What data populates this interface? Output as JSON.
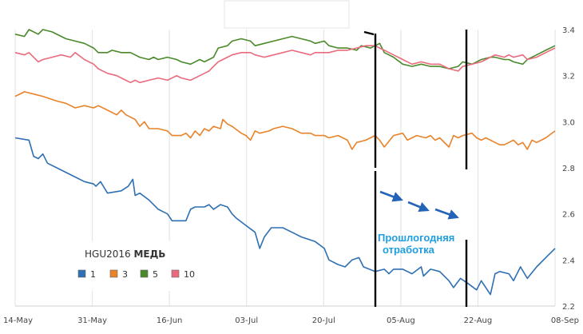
{
  "chart_data": {
    "type": "line",
    "x_labels": [
      "14-May",
      "31-May",
      "16-Jun",
      "03-Jul",
      "20-Jul",
      "05-Aug",
      "22-Aug",
      "08-Sep"
    ],
    "y_ticks": [
      "3.4",
      "3.2",
      "3.0",
      "2.8",
      "2.6",
      "2.4",
      "2.2"
    ],
    "ylim": [
      2.2,
      3.4
    ],
    "x_days": 117,
    "grid": {
      "vertical": true,
      "horizontal": false
    },
    "legend": {
      "position": "bottom-left",
      "title_main": "HGU2016",
      "title_bold": "МЕДЬ",
      "items": [
        "1",
        "3",
        "5",
        "10"
      ]
    },
    "annotation": {
      "line1": "Прошлогодняя",
      "line2": "отработка"
    },
    "series": [
      {
        "name": "1",
        "color": "#2f6fb3",
        "values": [
          [
            0,
            2.93
          ],
          [
            3,
            2.92
          ],
          [
            4,
            2.85
          ],
          [
            5,
            2.84
          ],
          [
            6,
            2.86
          ],
          [
            7,
            2.82
          ],
          [
            10,
            2.79
          ],
          [
            13,
            2.76
          ],
          [
            15,
            2.74
          ],
          [
            17,
            2.73
          ],
          [
            17.5,
            2.72
          ],
          [
            18.5,
            2.74
          ],
          [
            20,
            2.69
          ],
          [
            23,
            2.7
          ],
          [
            24.5,
            2.72
          ],
          [
            25.5,
            2.75
          ],
          [
            26,
            2.68
          ],
          [
            27,
            2.69
          ],
          [
            29,
            2.66
          ],
          [
            31,
            2.62
          ],
          [
            32,
            2.61
          ],
          [
            33,
            2.6
          ],
          [
            34,
            2.57
          ],
          [
            37,
            2.57
          ],
          [
            38,
            2.62
          ],
          [
            39,
            2.63
          ],
          [
            41,
            2.63
          ],
          [
            42,
            2.64
          ],
          [
            43,
            2.62
          ],
          [
            44.5,
            2.64
          ],
          [
            46,
            2.63
          ],
          [
            47,
            2.6
          ],
          [
            48,
            2.58
          ],
          [
            50,
            2.55
          ],
          [
            52,
            2.52
          ],
          [
            53,
            2.45
          ],
          [
            54,
            2.5
          ],
          [
            55.5,
            2.54
          ],
          [
            58,
            2.54
          ],
          [
            60,
            2.52
          ],
          [
            62,
            2.5
          ],
          [
            65,
            2.48
          ],
          [
            67,
            2.45
          ],
          [
            68,
            2.4
          ],
          [
            70,
            2.38
          ],
          [
            71.5,
            2.37
          ],
          [
            73,
            2.4
          ],
          [
            74.5,
            2.41
          ],
          [
            75.5,
            2.37
          ],
          [
            78,
            2.35
          ],
          [
            80,
            2.36
          ],
          [
            81,
            2.34
          ],
          [
            82,
            2.36
          ],
          [
            84,
            2.36
          ],
          [
            86,
            2.34
          ],
          [
            88,
            2.37
          ],
          [
            88.5,
            2.33
          ],
          [
            90,
            2.36
          ],
          [
            92,
            2.35
          ],
          [
            94,
            2.31
          ],
          [
            95,
            2.28
          ],
          [
            96.5,
            2.32
          ],
          [
            98,
            2.3
          ],
          [
            100,
            2.27
          ],
          [
            101,
            2.31
          ],
          [
            102,
            2.28
          ],
          [
            103,
            2.25
          ],
          [
            104,
            2.34
          ],
          [
            105,
            2.35
          ],
          [
            107,
            2.34
          ],
          [
            108,
            2.31
          ],
          [
            109.5,
            2.37
          ],
          [
            111,
            2.32
          ],
          [
            113,
            2.37
          ],
          [
            115,
            2.41
          ],
          [
            117,
            2.45
          ]
        ]
      },
      {
        "name": "3",
        "color": "#e8832a",
        "values": [
          [
            0,
            3.11
          ],
          [
            2,
            3.13
          ],
          [
            4,
            3.12
          ],
          [
            6,
            3.11
          ],
          [
            9,
            3.09
          ],
          [
            11,
            3.08
          ],
          [
            13,
            3.06
          ],
          [
            15,
            3.07
          ],
          [
            17,
            3.06
          ],
          [
            18,
            3.07
          ],
          [
            20,
            3.05
          ],
          [
            22,
            3.03
          ],
          [
            23,
            3.05
          ],
          [
            24,
            3.03
          ],
          [
            26,
            3.01
          ],
          [
            27,
            2.98
          ],
          [
            28,
            3.0
          ],
          [
            29,
            2.97
          ],
          [
            31,
            2.97
          ],
          [
            33,
            2.96
          ],
          [
            34,
            2.94
          ],
          [
            36,
            2.94
          ],
          [
            37,
            2.95
          ],
          [
            38,
            2.93
          ],
          [
            39,
            2.96
          ],
          [
            40,
            2.94
          ],
          [
            41,
            2.97
          ],
          [
            42,
            2.96
          ],
          [
            43,
            2.98
          ],
          [
            44.5,
            2.97
          ],
          [
            45,
            3.01
          ],
          [
            46,
            2.99
          ],
          [
            47,
            2.98
          ],
          [
            49,
            2.95
          ],
          [
            50,
            2.94
          ],
          [
            51,
            2.92
          ],
          [
            52,
            2.96
          ],
          [
            53,
            2.95
          ],
          [
            55,
            2.96
          ],
          [
            56,
            2.97
          ],
          [
            58,
            2.98
          ],
          [
            60,
            2.97
          ],
          [
            62,
            2.95
          ],
          [
            64,
            2.95
          ],
          [
            65,
            2.94
          ],
          [
            67,
            2.94
          ],
          [
            68,
            2.93
          ],
          [
            70,
            2.94
          ],
          [
            72,
            2.92
          ],
          [
            73,
            2.88
          ],
          [
            74,
            2.91
          ],
          [
            76,
            2.92
          ],
          [
            78,
            2.94
          ],
          [
            79,
            2.92
          ],
          [
            80,
            2.89
          ],
          [
            82,
            2.94
          ],
          [
            84,
            2.95
          ],
          [
            85,
            2.92
          ],
          [
            87,
            2.94
          ],
          [
            89,
            2.93
          ],
          [
            90,
            2.94
          ],
          [
            91,
            2.92
          ],
          [
            92,
            2.93
          ],
          [
            94,
            2.89
          ],
          [
            95,
            2.94
          ],
          [
            96,
            2.93
          ],
          [
            97,
            2.94
          ],
          [
            99,
            2.95
          ],
          [
            100,
            2.93
          ],
          [
            101,
            2.92
          ],
          [
            102,
            2.93
          ],
          [
            104,
            2.91
          ],
          [
            105,
            2.9
          ],
          [
            106,
            2.9
          ],
          [
            108,
            2.92
          ],
          [
            109,
            2.9
          ],
          [
            110,
            2.91
          ],
          [
            111,
            2.88
          ],
          [
            112,
            2.92
          ],
          [
            113,
            2.91
          ],
          [
            115,
            2.93
          ],
          [
            117,
            2.96
          ]
        ]
      },
      {
        "name": "5",
        "color": "#4a8a2a",
        "values": [
          [
            0,
            3.38
          ],
          [
            2,
            3.37
          ],
          [
            3,
            3.4
          ],
          [
            5,
            3.38
          ],
          [
            6,
            3.4
          ],
          [
            8,
            3.39
          ],
          [
            10,
            3.37
          ],
          [
            11,
            3.36
          ],
          [
            13,
            3.35
          ],
          [
            15,
            3.34
          ],
          [
            17,
            3.32
          ],
          [
            18,
            3.3
          ],
          [
            20,
            3.3
          ],
          [
            21,
            3.31
          ],
          [
            23,
            3.3
          ],
          [
            25,
            3.3
          ],
          [
            27,
            3.28
          ],
          [
            29,
            3.27
          ],
          [
            30,
            3.28
          ],
          [
            31,
            3.27
          ],
          [
            33,
            3.28
          ],
          [
            35,
            3.27
          ],
          [
            36,
            3.26
          ],
          [
            38,
            3.25
          ],
          [
            40,
            3.27
          ],
          [
            41,
            3.26
          ],
          [
            42,
            3.27
          ],
          [
            43,
            3.28
          ],
          [
            44,
            3.32
          ],
          [
            46,
            3.33
          ],
          [
            47,
            3.35
          ],
          [
            49,
            3.36
          ],
          [
            51,
            3.35
          ],
          [
            52,
            3.33
          ],
          [
            54,
            3.34
          ],
          [
            56,
            3.35
          ],
          [
            58,
            3.36
          ],
          [
            60,
            3.37
          ],
          [
            62,
            3.36
          ],
          [
            64,
            3.35
          ],
          [
            65,
            3.34
          ],
          [
            67,
            3.35
          ],
          [
            68,
            3.33
          ],
          [
            70,
            3.32
          ],
          [
            72,
            3.32
          ],
          [
            74,
            3.31
          ],
          [
            75,
            3.33
          ],
          [
            77,
            3.32
          ],
          [
            78,
            3.33
          ],
          [
            79,
            3.34
          ],
          [
            80,
            3.3
          ],
          [
            81,
            3.29
          ],
          [
            82,
            3.28
          ],
          [
            84,
            3.25
          ],
          [
            86,
            3.24
          ],
          [
            88,
            3.25
          ],
          [
            90,
            3.24
          ],
          [
            92,
            3.24
          ],
          [
            94,
            3.23
          ],
          [
            96,
            3.24
          ],
          [
            97,
            3.26
          ],
          [
            99,
            3.25
          ],
          [
            101,
            3.27
          ],
          [
            103,
            3.28
          ],
          [
            104,
            3.28
          ],
          [
            106,
            3.27
          ],
          [
            107,
            3.27
          ],
          [
            108,
            3.26
          ],
          [
            110,
            3.25
          ],
          [
            111,
            3.27
          ],
          [
            113,
            3.29
          ],
          [
            115,
            3.31
          ],
          [
            117,
            3.33
          ]
        ]
      },
      {
        "name": "10",
        "color": "#e96b7c",
        "values": [
          [
            0,
            3.3
          ],
          [
            2,
            3.29
          ],
          [
            3,
            3.3
          ],
          [
            4,
            3.28
          ],
          [
            5,
            3.26
          ],
          [
            6,
            3.27
          ],
          [
            8,
            3.28
          ],
          [
            10,
            3.29
          ],
          [
            12,
            3.28
          ],
          [
            13,
            3.3
          ],
          [
            15,
            3.27
          ],
          [
            17,
            3.25
          ],
          [
            18,
            3.23
          ],
          [
            20,
            3.21
          ],
          [
            22,
            3.2
          ],
          [
            23,
            3.19
          ],
          [
            25,
            3.17
          ],
          [
            26,
            3.18
          ],
          [
            27,
            3.17
          ],
          [
            29,
            3.18
          ],
          [
            31,
            3.19
          ],
          [
            33,
            3.18
          ],
          [
            35,
            3.2
          ],
          [
            36,
            3.19
          ],
          [
            38,
            3.18
          ],
          [
            40,
            3.2
          ],
          [
            41,
            3.21
          ],
          [
            42,
            3.22
          ],
          [
            43,
            3.24
          ],
          [
            44,
            3.26
          ],
          [
            46,
            3.28
          ],
          [
            47,
            3.29
          ],
          [
            49,
            3.3
          ],
          [
            51,
            3.3
          ],
          [
            52,
            3.29
          ],
          [
            54,
            3.28
          ],
          [
            56,
            3.29
          ],
          [
            58,
            3.3
          ],
          [
            60,
            3.31
          ],
          [
            62,
            3.3
          ],
          [
            64,
            3.29
          ],
          [
            65,
            3.3
          ],
          [
            67,
            3.3
          ],
          [
            68,
            3.3
          ],
          [
            70,
            3.31
          ],
          [
            72,
            3.31
          ],
          [
            74,
            3.32
          ],
          [
            76,
            3.33
          ],
          [
            78,
            3.33
          ],
          [
            79,
            3.32
          ],
          [
            80,
            3.31
          ],
          [
            82,
            3.29
          ],
          [
            84,
            3.27
          ],
          [
            86,
            3.25
          ],
          [
            88,
            3.26
          ],
          [
            90,
            3.25
          ],
          [
            92,
            3.25
          ],
          [
            94,
            3.23
          ],
          [
            96,
            3.22
          ],
          [
            97,
            3.24
          ],
          [
            99,
            3.25
          ],
          [
            101,
            3.26
          ],
          [
            103,
            3.28
          ],
          [
            104,
            3.29
          ],
          [
            106,
            3.28
          ],
          [
            107,
            3.29
          ],
          [
            108,
            3.28
          ],
          [
            110,
            3.29
          ],
          [
            111,
            3.27
          ],
          [
            113,
            3.28
          ],
          [
            115,
            3.3
          ],
          [
            117,
            3.32
          ]
        ]
      }
    ]
  }
}
